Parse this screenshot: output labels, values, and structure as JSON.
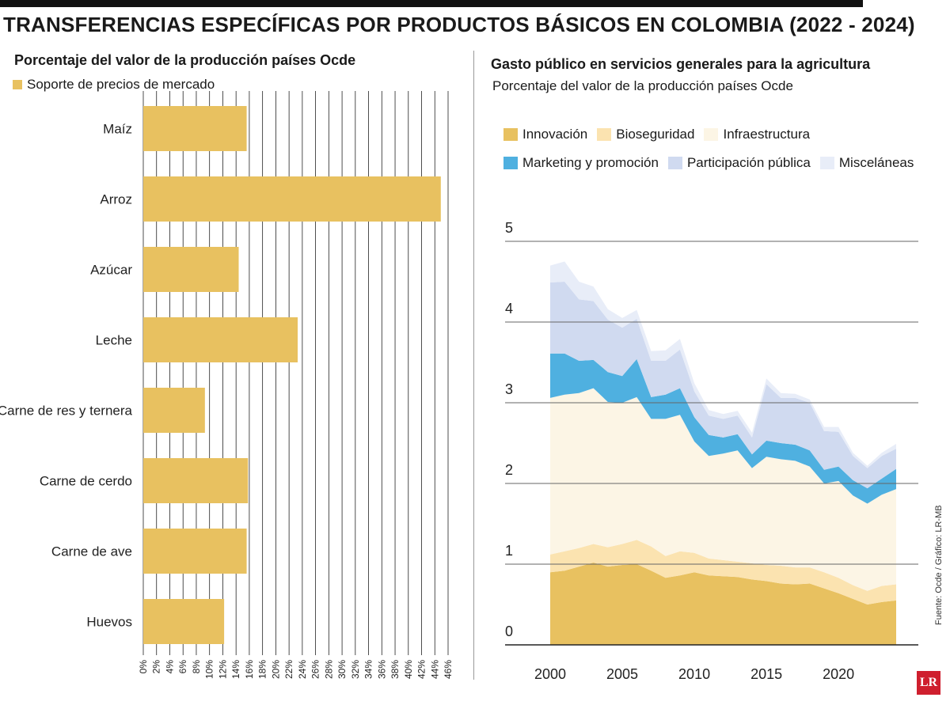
{
  "title": "TRANSFERENCIAS ESPECÍFICAS POR PRODUCTOS BÁSICOS EN COLOMBIA (2022 - 2024)",
  "left_subtitle": "Porcentaje del valor de la producción países Ocde",
  "right_title": "Gasto público en servicios generales para la agricultura",
  "right_subtitle": "Porcentaje del valor de la producción países Ocde",
  "source": "Fuente: Ocde / Gráfico: LR-MB",
  "logo_text": "LR",
  "colors": {
    "bar": "#e8c160",
    "innovacion": "#e8c160",
    "bioseguridad": "#fbe3b0",
    "infraestructura": "#fcf5e5",
    "marketing": "#4fb0e0",
    "participacion": "#d0daf0",
    "miscelaneas": "#e8edf8"
  },
  "chart_data": [
    {
      "type": "bar",
      "orientation": "horizontal",
      "legend": [
        "Soporte de precios de mercado"
      ],
      "categories": [
        "Maíz",
        "Arroz",
        "Azúcar",
        "Leche",
        "Carne de res y ternera",
        "Carne de cerdo",
        "Carne de ave",
        "Huevos"
      ],
      "values": [
        15.6,
        44.9,
        14.4,
        23.3,
        9.3,
        15.8,
        15.6,
        12.2
      ],
      "unit": "%",
      "xlim": [
        0,
        46
      ],
      "xticks": [
        "0%",
        "2%",
        "4%",
        "6%",
        "8%",
        "10%",
        "12%",
        "14%",
        "16%",
        "18%",
        "20%",
        "22%",
        "24%",
        "26%",
        "28%",
        "30%",
        "32%",
        "34%",
        "36%",
        "38%",
        "40%",
        "42%",
        "44%",
        "46%"
      ],
      "grid": "vertical"
    },
    {
      "type": "area",
      "stacked": true,
      "ylim": [
        0,
        5
      ],
      "yticks": [
        "0",
        "1",
        "2",
        "3",
        "4",
        "5"
      ],
      "xticks": [
        "2000",
        "2005",
        "2010",
        "2015",
        "2020"
      ],
      "grid": "horizontal",
      "legend_position": "top",
      "x": [
        2000,
        2001,
        2002,
        2003,
        2004,
        2005,
        2006,
        2007,
        2008,
        2009,
        2010,
        2011,
        2012,
        2013,
        2014,
        2015,
        2016,
        2017,
        2018,
        2019,
        2020,
        2021,
        2022,
        2023,
        2024
      ],
      "series": [
        {
          "name": "Innovación",
          "values": [
            0.9,
            0.92,
            0.97,
            1.02,
            0.97,
            0.99,
            1.0,
            0.92,
            0.83,
            0.86,
            0.9,
            0.86,
            0.85,
            0.84,
            0.81,
            0.79,
            0.76,
            0.75,
            0.76,
            0.7,
            0.64,
            0.57,
            0.5,
            0.53,
            0.55
          ]
        },
        {
          "name": "Bioseguridad",
          "values": [
            0.22,
            0.24,
            0.23,
            0.23,
            0.24,
            0.26,
            0.3,
            0.3,
            0.27,
            0.3,
            0.24,
            0.21,
            0.2,
            0.19,
            0.2,
            0.2,
            0.22,
            0.21,
            0.2,
            0.2,
            0.19,
            0.17,
            0.17,
            0.2,
            0.2
          ]
        },
        {
          "name": "Infraestructura",
          "values": [
            1.94,
            1.94,
            1.92,
            1.93,
            1.8,
            1.75,
            1.77,
            1.58,
            1.7,
            1.69,
            1.38,
            1.27,
            1.32,
            1.38,
            1.18,
            1.34,
            1.32,
            1.32,
            1.25,
            1.1,
            1.2,
            1.11,
            1.08,
            1.13,
            1.18
          ]
        },
        {
          "name": "Marketing y promoción",
          "values": [
            0.55,
            0.51,
            0.4,
            0.35,
            0.37,
            0.33,
            0.47,
            0.27,
            0.3,
            0.33,
            0.3,
            0.26,
            0.2,
            0.2,
            0.17,
            0.2,
            0.2,
            0.2,
            0.2,
            0.17,
            0.18,
            0.19,
            0.19,
            0.2,
            0.25
          ]
        },
        {
          "name": "Participación pública",
          "values": [
            0.88,
            0.89,
            0.76,
            0.73,
            0.65,
            0.6,
            0.5,
            0.45,
            0.42,
            0.48,
            0.32,
            0.24,
            0.23,
            0.23,
            0.21,
            0.7,
            0.56,
            0.58,
            0.59,
            0.48,
            0.43,
            0.3,
            0.25,
            0.28,
            0.25
          ]
        },
        {
          "name": "Misceláneas",
          "values": [
            0.21,
            0.25,
            0.22,
            0.18,
            0.13,
            0.12,
            0.11,
            0.12,
            0.13,
            0.13,
            0.1,
            0.07,
            0.06,
            0.06,
            0.06,
            0.07,
            0.06,
            0.05,
            0.04,
            0.05,
            0.06,
            0.04,
            0.03,
            0.04,
            0.06
          ]
        }
      ]
    }
  ]
}
